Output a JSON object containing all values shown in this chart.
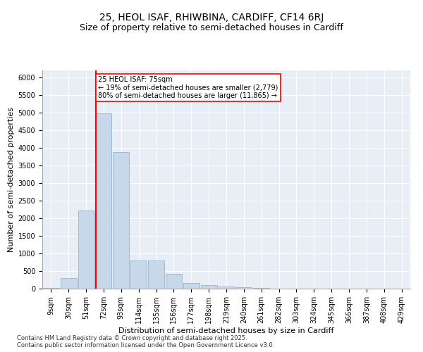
{
  "title1": "25, HEOL ISAF, RHIWBINA, CARDIFF, CF14 6RJ",
  "title2": "Size of property relative to semi-detached houses in Cardiff",
  "xlabel": "Distribution of semi-detached houses by size in Cardiff",
  "ylabel": "Number of semi-detached properties",
  "footer1": "Contains HM Land Registry data © Crown copyright and database right 2025.",
  "footer2": "Contains public sector information licensed under the Open Government Licence v3.0.",
  "bin_labels": [
    "9sqm",
    "30sqm",
    "51sqm",
    "72sqm",
    "93sqm",
    "114sqm",
    "135sqm",
    "156sqm",
    "177sqm",
    "198sqm",
    "219sqm",
    "240sqm",
    "261sqm",
    "282sqm",
    "303sqm",
    "324sqm",
    "345sqm",
    "366sqm",
    "387sqm",
    "408sqm",
    "429sqm"
  ],
  "bar_values": [
    25,
    310,
    2230,
    4980,
    3880,
    800,
    800,
    430,
    160,
    110,
    70,
    40,
    20,
    10,
    5,
    5,
    2,
    2,
    1,
    1,
    1
  ],
  "bar_color": "#c8d8eb",
  "bar_edge_color": "#8aaac8",
  "vline_color": "red",
  "property_label": "25 HEOL ISAF: 75sqm",
  "annotation_smaller": "← 19% of semi-detached houses are smaller (2,779)",
  "annotation_larger": "80% of semi-detached houses are larger (11,865) →",
  "ylim": [
    0,
    6200
  ],
  "yticks": [
    0,
    500,
    1000,
    1500,
    2000,
    2500,
    3000,
    3500,
    4000,
    4500,
    5000,
    5500,
    6000
  ],
  "bg_color": "#e8eef5",
  "fig_bg_color": "#ffffff",
  "title1_fontsize": 10,
  "title2_fontsize": 9,
  "axis_label_fontsize": 8,
  "tick_fontsize": 7,
  "footer_fontsize": 6
}
